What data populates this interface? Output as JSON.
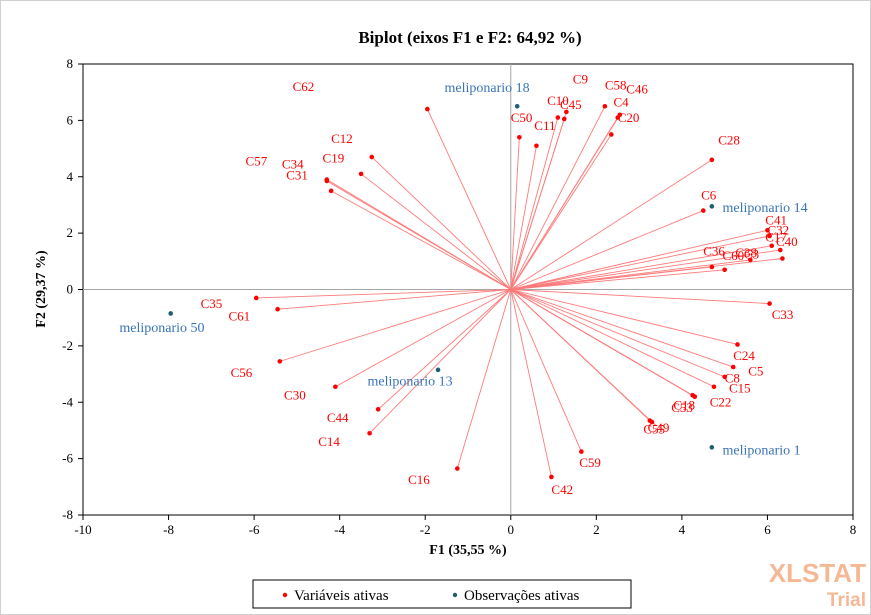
{
  "chart_data": {
    "type": "scatter",
    "title": "Biplot (eixos F1 e F2: 64,92 %)",
    "xlabel": "F1 (35,55 %)",
    "ylabel": "F2 (29,37 %)",
    "xlim": [
      -10,
      8
    ],
    "ylim": [
      -8,
      8
    ],
    "x_ticks": [
      -10,
      -8,
      -6,
      -4,
      -2,
      0,
      2,
      4,
      6,
      8
    ],
    "y_ticks": [
      -8,
      -6,
      -4,
      -2,
      0,
      2,
      4,
      6,
      8
    ],
    "grid": false,
    "legend_position": "bottom",
    "legend": [
      "Variáveis ativas",
      "Observações ativas"
    ],
    "colors": {
      "variables": "#ff0000",
      "vectors": "#ff7a7a",
      "observations": "#1f5f6e",
      "observation_labels": "#3a74b8",
      "axis_lines": "#a6a6a6"
    },
    "variables": [
      {
        "name": "C62",
        "x": -1.95,
        "y": 6.4,
        "lx": -5.1,
        "ly": 7.05
      },
      {
        "name": "C9",
        "x": 1.3,
        "y": 6.3,
        "lx": 1.45,
        "ly": 7.3
      },
      {
        "name": "C58",
        "x": 2.2,
        "y": 6.5,
        "lx": 2.2,
        "ly": 7.1
      },
      {
        "name": "C46",
        "x": 2.55,
        "y": 6.2,
        "lx": 2.7,
        "ly": 6.95
      },
      {
        "name": "C4",
        "x": 2.5,
        "y": 6.1,
        "lx": 2.4,
        "ly": 6.5
      },
      {
        "name": "C45",
        "x": 1.25,
        "y": 6.05,
        "lx": 1.15,
        "ly": 6.4
      },
      {
        "name": "C10",
        "x": 1.1,
        "y": 6.1,
        "lx": 0.85,
        "ly": 6.55
      },
      {
        "name": "C50",
        "x": 0.2,
        "y": 5.4,
        "lx": 0.0,
        "ly": 5.95
      },
      {
        "name": "C20",
        "x": 2.35,
        "y": 5.5,
        "lx": 2.5,
        "ly": 5.95
      },
      {
        "name": "C11",
        "x": 0.6,
        "y": 5.1,
        "lx": 0.55,
        "ly": 5.65
      },
      {
        "name": "C12",
        "x": -3.25,
        "y": 4.7,
        "lx": -4.2,
        "ly": 5.2
      },
      {
        "name": "C19",
        "x": -3.5,
        "y": 4.1,
        "lx": -4.4,
        "ly": 4.5
      },
      {
        "name": "C57",
        "x": -4.3,
        "y": 3.9,
        "lx": -6.2,
        "ly": 4.4
      },
      {
        "name": "C34",
        "x": -4.3,
        "y": 3.85,
        "lx": -5.35,
        "ly": 4.3
      },
      {
        "name": "C31",
        "x": -4.2,
        "y": 3.5,
        "lx": -5.25,
        "ly": 3.9
      },
      {
        "name": "C28",
        "x": 4.7,
        "y": 4.6,
        "lx": 4.85,
        "ly": 5.15
      },
      {
        "name": "C6",
        "x": 4.5,
        "y": 2.8,
        "lx": 4.45,
        "ly": 3.2
      },
      {
        "name": "C41",
        "x": 6.0,
        "y": 2.1,
        "lx": 5.95,
        "ly": 2.3
      },
      {
        "name": "C32",
        "x": 6.05,
        "y": 1.9,
        "lx": 6.0,
        "ly": 1.95
      },
      {
        "name": "C17",
        "x": 6.1,
        "y": 1.55,
        "lx": 5.95,
        "ly": 1.7
      },
      {
        "name": "C40",
        "x": 6.3,
        "y": 1.4,
        "lx": 6.2,
        "ly": 1.55
      },
      {
        "name": "C36",
        "x": 4.7,
        "y": 0.8,
        "lx": 4.5,
        "ly": 1.2
      },
      {
        "name": "C38",
        "x": 5.6,
        "y": 1.05,
        "lx": 5.25,
        "ly": 1.15
      },
      {
        "name": "C60",
        "x": 5.0,
        "y": 0.7,
        "lx": 4.95,
        "ly": 1.05
      },
      {
        "name": "C3",
        "x": 6.35,
        "y": 1.1,
        "lx": 5.45,
        "ly": 1.1
      },
      {
        "name": "C35",
        "x": -5.95,
        "y": -0.3,
        "lx": -7.25,
        "ly": -0.65
      },
      {
        "name": "C61",
        "x": -5.45,
        "y": -0.7,
        "lx": -6.6,
        "ly": -1.1
      },
      {
        "name": "C33",
        "x": 6.05,
        "y": -0.5,
        "lx": 6.1,
        "ly": -1.05
      },
      {
        "name": "C24",
        "x": 5.3,
        "y": -1.95,
        "lx": 5.2,
        "ly": -2.5
      },
      {
        "name": "C5",
        "x": 5.2,
        "y": -2.75,
        "lx": 5.55,
        "ly": -3.05
      },
      {
        "name": "C8",
        "x": 5.0,
        "y": -3.1,
        "lx": 5.0,
        "ly": -3.3
      },
      {
        "name": "C15",
        "x": 4.75,
        "y": -3.45,
        "lx": 5.1,
        "ly": -3.65
      },
      {
        "name": "C22",
        "x": 4.25,
        "y": -3.75,
        "lx": 4.65,
        "ly": -4.15
      },
      {
        "name": "C53",
        "x": 4.3,
        "y": -3.8,
        "lx": 3.75,
        "ly": -4.35
      },
      {
        "name": "C18",
        "x": 4.3,
        "y": -3.8,
        "lx": 3.8,
        "ly": -4.25
      },
      {
        "name": "C56",
        "x": -5.4,
        "y": -2.55,
        "lx": -6.55,
        "ly": -3.1
      },
      {
        "name": "C30",
        "x": -4.1,
        "y": -3.45,
        "lx": -5.3,
        "ly": -3.9
      },
      {
        "name": "C44",
        "x": -3.1,
        "y": -4.25,
        "lx": -4.3,
        "ly": -4.7
      },
      {
        "name": "C14",
        "x": -3.3,
        "y": -5.1,
        "lx": -4.5,
        "ly": -5.55
      },
      {
        "name": "C55",
        "x": 3.25,
        "y": -4.65,
        "lx": 3.1,
        "ly": -5.1
      },
      {
        "name": "C49",
        "x": 3.3,
        "y": -4.7,
        "lx": 3.2,
        "ly": -5.05
      },
      {
        "name": "C59",
        "x": 1.65,
        "y": -5.75,
        "lx": 1.6,
        "ly": -6.3
      },
      {
        "name": "C16",
        "x": -1.25,
        "y": -6.35,
        "lx": -2.4,
        "ly": -6.9
      },
      {
        "name": "C42",
        "x": 0.95,
        "y": -6.65,
        "lx": 0.95,
        "ly": -7.25
      }
    ],
    "observations": [
      {
        "name": "meliponario 18",
        "x": 0.15,
        "y": 6.5,
        "lx": -1.55,
        "ly": 7.0
      },
      {
        "name": "meliponario 14",
        "x": 4.7,
        "y": 2.95,
        "lx": 4.95,
        "ly": 2.75
      },
      {
        "name": "meliponario 50",
        "x": -7.95,
        "y": -0.85,
        "lx": -9.15,
        "ly": -1.5
      },
      {
        "name": "meliponario 13",
        "x": -1.7,
        "y": -2.85,
        "lx": -3.35,
        "ly": -3.4
      },
      {
        "name": "meliponario 1",
        "x": 4.7,
        "y": -5.6,
        "lx": 4.95,
        "ly": -5.85
      }
    ]
  },
  "watermark": {
    "text": "XLSTAT",
    "sub": "Trial"
  }
}
